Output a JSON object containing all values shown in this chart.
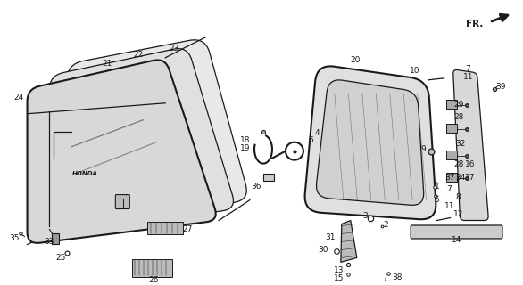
{
  "bg_color": "#ffffff",
  "line_color": "#1a1a1a",
  "fig_width": 5.86,
  "fig_height": 3.2,
  "dpi": 100
}
